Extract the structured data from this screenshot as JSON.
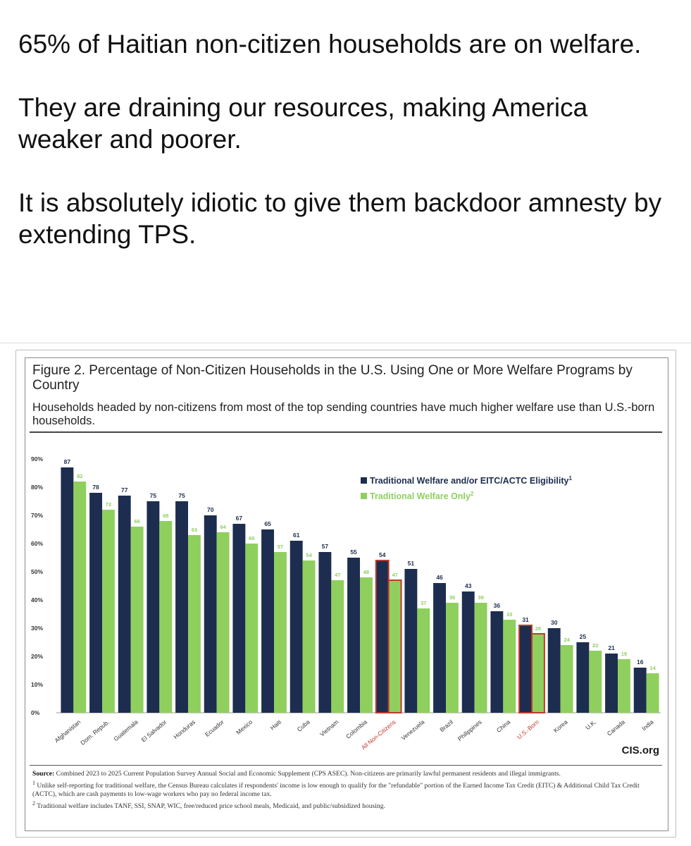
{
  "post": {
    "paragraphs": [
      "65% of Haitian non-citizen households are on welfare.",
      "They are draining our resources, making America weaker and poorer.",
      "It is absolutely idiotic to give them backdoor amnesty by extending TPS."
    ]
  },
  "figure": {
    "title": "Figure 2. Percentage of Non-Citizen Households in the U.S. Using One or More Welfare Programs by Country",
    "subtitle": "Households headed by non-citizens from most of the top sending countries have much higher welfare use than U.S.-born households.",
    "logo": "CIS.org",
    "source_label": "Source:",
    "source_text": "Combined 2023 to 2025 Current Population Survey Annual Social and Economic Supplement (CPS ASEC). Non-citizens are primarily lawful permanent residents and illegal immigrants.",
    "note1_marker": "1",
    "note1": "Unlike self-reporting for traditional welfare, the Census Bureau calculates if respondents' income is low enough to qualify for the \"refundable\" portion of the Earned Income Tax Credit (EITC) & Additional Child Tax Credit (ACTC), which are cash payments to low-wage workers who pay no federal income tax.",
    "note2_marker": "2",
    "note2": "Traditional welfare includes TANF, SSI, SNAP, WIC, free/reduced price school meals, Medicaid, and public/subsidized housing."
  },
  "chart_data": {
    "type": "bar",
    "categories": [
      "Afghanistan",
      "Dom. Repub.",
      "Guatemala",
      "El Salvador",
      "Honduras",
      "Ecuador",
      "Mexico",
      "Haiti",
      "Cuba",
      "Vietnam",
      "Colombia",
      "All Non-Citizens",
      "Venezuela",
      "Brazil",
      "Philippines",
      "China",
      "U.S.-Born",
      "Korea",
      "U.K.",
      "Canada",
      "India"
    ],
    "highlighted_categories": [
      "All Non-Citizens",
      "U.S.-Born"
    ],
    "series": [
      {
        "name": "Traditional Welfare and/or EITC/ACTC Eligibility",
        "name_sup": "1",
        "color": "#1c2d4f",
        "values": [
          87,
          78,
          77,
          75,
          75,
          70,
          67,
          65,
          61,
          57,
          55,
          54,
          51,
          46,
          43,
          36,
          31,
          30,
          25,
          21,
          16
        ]
      },
      {
        "name": "Traditional Welfare Only",
        "name_sup": "2",
        "color": "#8fcf5e",
        "values": [
          82,
          72,
          66,
          68,
          63,
          64,
          60,
          57,
          54,
          47,
          48,
          47,
          37,
          39,
          39,
          33,
          28,
          24,
          22,
          19,
          14
        ]
      }
    ],
    "yticks": [
      "0%",
      "10%",
      "20%",
      "30%",
      "40%",
      "50%",
      "60%",
      "70%",
      "80%",
      "90%"
    ],
    "ylim": [
      0,
      90
    ],
    "highlight_color": "#c0392b",
    "legend_position": "top-right",
    "grid": false
  }
}
